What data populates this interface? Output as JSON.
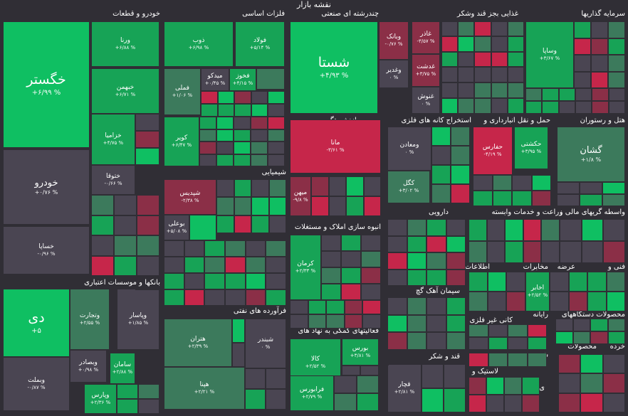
{
  "header": {
    "title": "نقشه بازار"
  },
  "colors": {
    "bg": "#302e35",
    "up": "#17a356",
    "upStrong": "#0fbf62",
    "upDim": "#3c7a5c",
    "neutral": "#4a4552",
    "down": "#8b2f47",
    "downStrong": "#c6264a"
  },
  "sectors": [
    {
      "label": "خودرو و قطعات"
    },
    {
      "label": "فلزات اساسی"
    },
    {
      "label": "چندرشته ای صنعتی"
    },
    {
      "label": "غذایی بجز قند وشکر"
    },
    {
      "label": "سرمایه گذاریها"
    },
    {
      "label": "بیمه و بازنشستگی"
    },
    {
      "label": "استخراج کانه های فلزی"
    },
    {
      "label": "حمل و نقل انبارداری و"
    },
    {
      "label": "هتل و رستوران"
    },
    {
      "label": "شیمیایی"
    },
    {
      "label": "انبوه سازی املاک و مستغلات"
    },
    {
      "label": "دارویی"
    },
    {
      "label": "زراعت و خدمات وابسته"
    },
    {
      "label": "واسطه گریهای مالی و"
    },
    {
      "label": "بانکها و موسسات اعتباری"
    },
    {
      "label": "فرآورده های نفتی"
    },
    {
      "label": "سیمان آهک گچ"
    },
    {
      "label": "اطلاعات و"
    },
    {
      "label": "مخابرات"
    },
    {
      "label": "عرضه"
    },
    {
      "label": "فنی و"
    },
    {
      "label": "کانی غیر فلزی"
    },
    {
      "label": "رایانه"
    },
    {
      "label": "محصولات دستگاههای"
    },
    {
      "label": "فعالیتهای کمکی به نهاد های"
    },
    {
      "label": "قند و شکر"
    },
    {
      "label": "شی و"
    },
    {
      "label": "محصولات"
    },
    {
      "label": "خرده"
    },
    {
      "label": "لاستیک و"
    },
    {
      "label": "ی آلات"
    }
  ],
  "tiles": [
    {
      "name": "خگستر",
      "change": "+۶/۹۹ %",
      "color": "upStrong"
    },
    {
      "name": "ورنا",
      "change": "+۶/۸۸ %",
      "color": "up"
    },
    {
      "name": "خبهمن",
      "change": "+۶/۷۱ %",
      "color": "up"
    },
    {
      "name": "خزامیا",
      "change": "+۴/۷۵ %",
      "color": "up"
    },
    {
      "name": "ختوقا",
      "change": "-۰/۶۶ %",
      "color": "neutral"
    },
    {
      "name": "خودرو",
      "change": "+۰/۷۶ %",
      "color": "neutral"
    },
    {
      "name": "خساپا",
      "change": "-۰/۹۶ %",
      "color": "neutral"
    },
    {
      "name": "ذوب",
      "change": "+۶/۹۸ %",
      "color": "up"
    },
    {
      "name": "فولاد",
      "change": "+۵/۱۴ %",
      "color": "up"
    },
    {
      "name": "فملی",
      "change": "+۱/۰۶ %",
      "color": "upDim"
    },
    {
      "name": "میدکو",
      "change": "+۰/۴۵ %",
      "color": "neutral"
    },
    {
      "name": "فخوز",
      "change": "+۴/۱۵ %",
      "color": "up"
    },
    {
      "name": "کویر",
      "change": "+۶/۴۷ %",
      "color": "up"
    },
    {
      "name": "شستا",
      "change": "+۴/۹۳ %",
      "color": "upStrong"
    },
    {
      "name": "وبانک",
      "change": "-۰/۷۶ %",
      "color": "down"
    },
    {
      "name": "وغدیر",
      "change": "۰ %",
      "color": "neutral"
    },
    {
      "name": "غاذر",
      "change": "-۳/۵۷ %",
      "color": "down"
    },
    {
      "name": "غدشت",
      "change": "+۳/۷۵ %",
      "color": "down"
    },
    {
      "name": "غنوش",
      "change": "۰ %",
      "color": "neutral"
    },
    {
      "name": "وساپا",
      "change": "+۳/۶۷ %",
      "color": "up"
    },
    {
      "name": "مانا",
      "change": "-۳/۶۱ %",
      "color": "downStrong"
    },
    {
      "name": "ومعادن",
      "change": "۰ %",
      "color": "neutral"
    },
    {
      "name": "کگل",
      "change": "+۳/۰۲ %",
      "color": "upDim"
    },
    {
      "name": "حفارس",
      "change": "-۴/۱۹ %",
      "color": "downStrong"
    },
    {
      "name": "حکشتی",
      "change": "+۳/۹۵ %",
      "color": "up"
    },
    {
      "name": "گشان",
      "change": "+۱/۸ %",
      "color": "upDim"
    },
    {
      "name": "شپدیس",
      "change": "-۲/۳۸ %",
      "color": "down"
    },
    {
      "name": "بوعلی",
      "change": "+۵/۰۸ %",
      "color": "neutral"
    },
    {
      "name": "میهن",
      "change": "-۹/۸ %",
      "color": "down"
    },
    {
      "name": "کرمان",
      "change": "+۲/۳۳ %",
      "color": "up"
    },
    {
      "name": "دی",
      "change": "+۵",
      "color": "upStrong"
    },
    {
      "name": "وتجارت",
      "change": "+۲/۵۵ %",
      "color": "upDim"
    },
    {
      "name": "وپاسار",
      "change": "+۱/۸۵ %",
      "color": "neutral"
    },
    {
      "name": "وبصادر",
      "change": "+۰/۹۸ %",
      "color": "neutral"
    },
    {
      "name": "سامان",
      "change": "+۲/۸۸ %",
      "color": "up"
    },
    {
      "name": "وبملت",
      "change": "-۰/۸۷ %",
      "color": "neutral"
    },
    {
      "name": "وپارس",
      "change": "+۲/۳۶ %",
      "color": "up"
    },
    {
      "name": "هتران",
      "change": "+۲/۳۹ %",
      "color": "upDim"
    },
    {
      "name": "شبندر",
      "change": "۰ %",
      "color": "neutral"
    },
    {
      "name": "هپنا",
      "change": "+۲/۲۱ %",
      "color": "upDim"
    },
    {
      "name": "کالا",
      "change": "+۲/۵۲ %",
      "color": "up"
    },
    {
      "name": "بورس",
      "change": "+۳/۸۱ %",
      "color": "up"
    },
    {
      "name": "فرابورس",
      "change": "+۲/۷۹ %",
      "color": "up"
    },
    {
      "name": "قچار",
      "change": "+۲/۸۱ %",
      "color": "neutral"
    },
    {
      "name": "اخابر",
      "change": "+۲/۵۲ %",
      "color": "up"
    }
  ]
}
